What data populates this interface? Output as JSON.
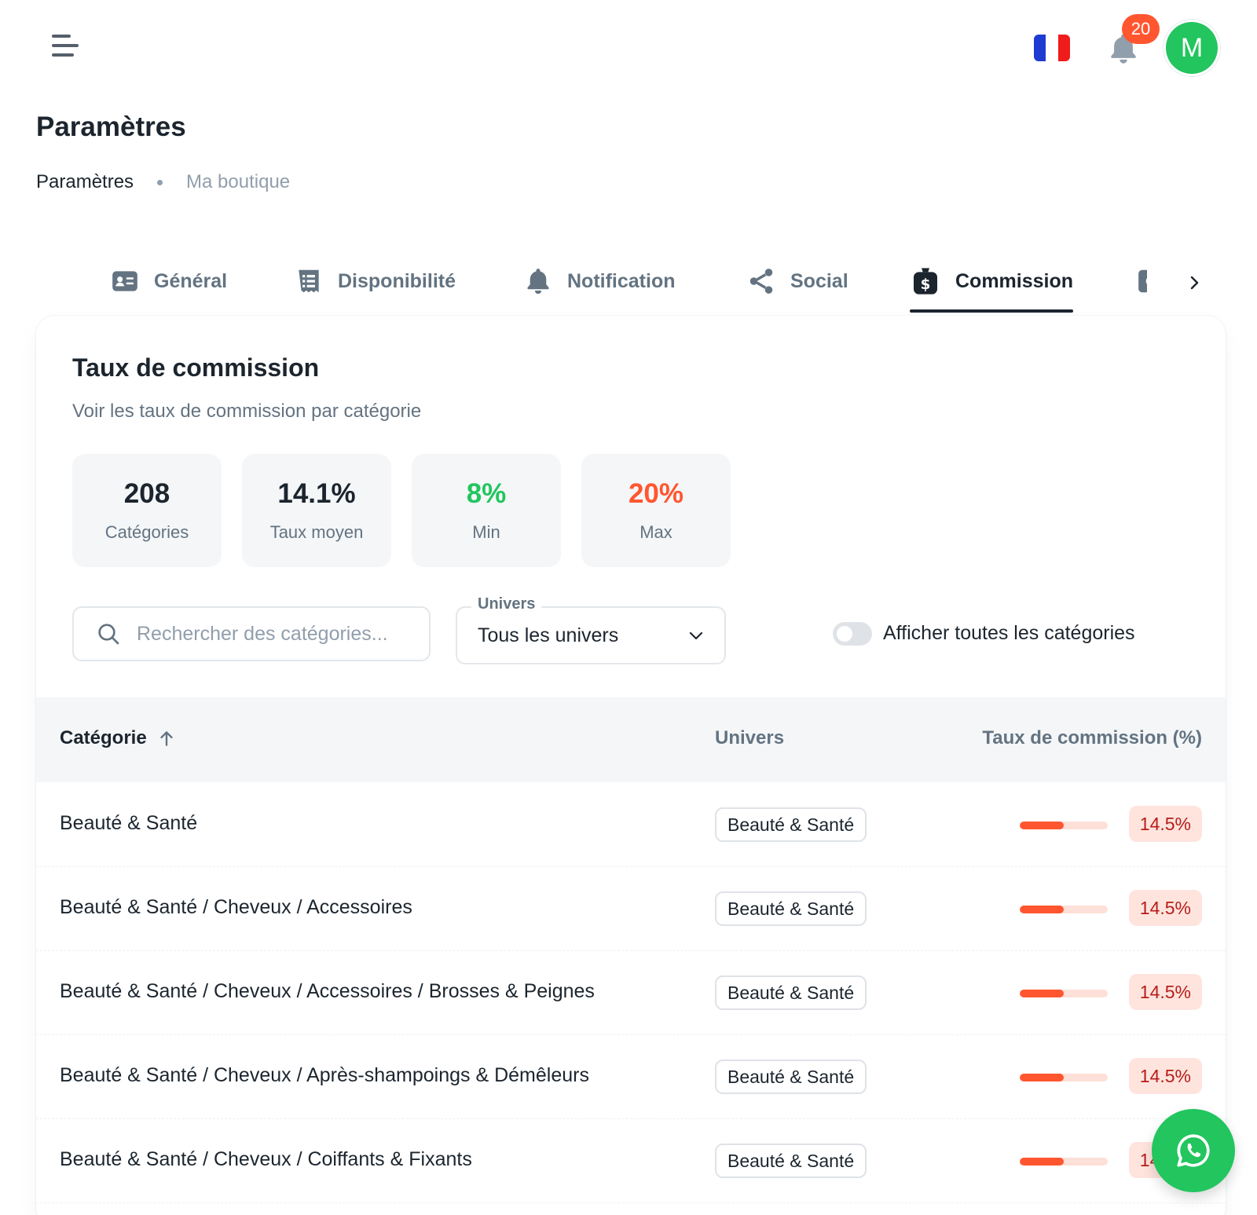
{
  "header": {
    "notification_count": "20",
    "avatar_initial": "M",
    "flag_colors": [
      "#1e3bd1",
      "#ffffff",
      "#f01c1c"
    ]
  },
  "page": {
    "title": "Paramètres",
    "breadcrumb": [
      "Paramètres",
      "Ma boutique"
    ]
  },
  "tabs": [
    {
      "label": "Général",
      "icon": "id-card-icon"
    },
    {
      "label": "Disponibilité",
      "icon": "list-icon"
    },
    {
      "label": "Notification",
      "icon": "bell-icon"
    },
    {
      "label": "Social",
      "icon": "share-icon"
    },
    {
      "label": "Commission",
      "icon": "money-bag-icon",
      "active": true
    }
  ],
  "commission": {
    "title": "Taux de commission",
    "subtitle": "Voir les taux de commission par catégorie",
    "stats": [
      {
        "value": "208",
        "label": "Catégories",
        "color": "#1c252e"
      },
      {
        "value": "14.1%",
        "label": "Taux moyen",
        "color": "#1c252e"
      },
      {
        "value": "8%",
        "label": "Min",
        "color": "#22c55e"
      },
      {
        "value": "20%",
        "label": "Max",
        "color": "#ff5630"
      }
    ],
    "search_placeholder": "Rechercher des catégories...",
    "filter_label": "Univers",
    "filter_value": "Tous les univers",
    "toggle_label": "Afficher toutes les catégories",
    "toggle_on": false,
    "columns": [
      "Catégorie",
      "Univers",
      "Taux de commission (%)"
    ],
    "rows": [
      {
        "category": "Beauté & Santé",
        "univers": "Beauté & Santé",
        "rate": "14.5%",
        "bar_fill": 0.5
      },
      {
        "category": "Beauté & Santé / Cheveux / Accessoires",
        "univers": "Beauté & Santé",
        "rate": "14.5%",
        "bar_fill": 0.5
      },
      {
        "category": "Beauté & Santé / Cheveux / Accessoires / Brosses & Peignes",
        "univers": "Beauté & Santé",
        "rate": "14.5%",
        "bar_fill": 0.5
      },
      {
        "category": "Beauté & Santé / Cheveux / Après-shampoings & Démêleurs",
        "univers": "Beauté & Santé",
        "rate": "14.5%",
        "bar_fill": 0.5
      },
      {
        "category": "Beauté & Santé / Cheveux / Coiffants & Fixants",
        "univers": "Beauté & Santé",
        "rate": "14.5%",
        "bar_fill": 0.5
      }
    ]
  },
  "colors": {
    "accent": "#1c252e",
    "success": "#22c55e",
    "error": "#ff5630"
  }
}
